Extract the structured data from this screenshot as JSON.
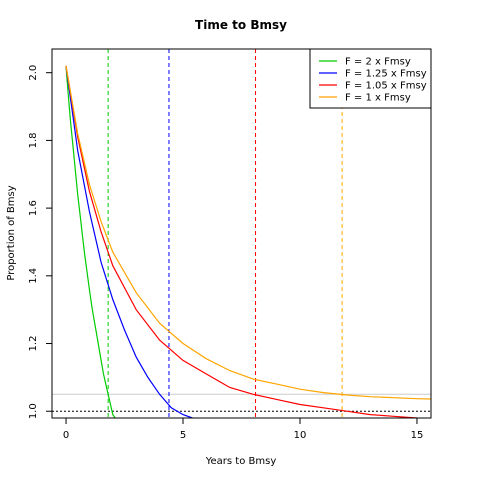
{
  "chart_data": {
    "type": "line",
    "title": "Time to Bmsy",
    "xlabel": "Years to Bmsy",
    "ylabel": "Proportion of Bmsy",
    "xlim": [
      -0.6,
      15.6
    ],
    "ylim": [
      0.98,
      2.07
    ],
    "xticks": [
      0,
      5,
      10,
      15
    ],
    "yticks": [
      1.0,
      1.2,
      1.4,
      1.6,
      1.8,
      2.0
    ],
    "xtick_labels": [
      "0",
      "5",
      "10",
      "15"
    ],
    "ytick_labels": [
      "1.0",
      "1.2",
      "1.4",
      "1.6",
      "1.8",
      "2.0"
    ],
    "legend_position": "top-right",
    "series": [
      {
        "name": "F = 2 x Fmsy",
        "color": "#00cc00",
        "x": [
          0,
          0.1,
          0.2,
          0.3,
          0.4,
          0.5,
          0.6,
          0.7,
          0.8,
          0.9,
          1.0,
          1.1,
          1.2,
          1.3,
          1.4,
          1.5,
          1.6,
          1.7,
          1.8,
          1.9,
          2.0,
          2.1
        ],
        "y": [
          2.02,
          1.93,
          1.85,
          1.78,
          1.71,
          1.64,
          1.58,
          1.52,
          1.46,
          1.41,
          1.36,
          1.31,
          1.27,
          1.23,
          1.19,
          1.15,
          1.11,
          1.08,
          1.05,
          1.02,
          0.99,
          0.98
        ],
        "crossing_x": 1.8
      },
      {
        "name": "F = 1.25 x Fmsy",
        "color": "#0000ff",
        "x": [
          0,
          0.5,
          1.0,
          1.5,
          2.0,
          2.5,
          3.0,
          3.5,
          4.0,
          4.5,
          5.0,
          5.4
        ],
        "y": [
          2.02,
          1.77,
          1.59,
          1.44,
          1.33,
          1.24,
          1.16,
          1.1,
          1.05,
          1.01,
          0.99,
          0.98
        ],
        "crossing_x": 4.4
      },
      {
        "name": "F = 1.05 x Fmsy",
        "color": "#ff0000",
        "x": [
          0,
          0.5,
          1.0,
          1.5,
          2.0,
          3.0,
          4.0,
          5.0,
          6.0,
          7.0,
          8.0,
          9.0,
          10.0,
          11.0,
          12.0,
          13.0,
          14.0,
          15.0
        ],
        "y": [
          2.02,
          1.81,
          1.65,
          1.53,
          1.43,
          1.3,
          1.21,
          1.15,
          1.11,
          1.07,
          1.05,
          1.035,
          1.02,
          1.01,
          1.0,
          0.99,
          0.985,
          0.98
        ],
        "crossing_x": 8.1
      },
      {
        "name": "F = 1 x Fmsy",
        "color": "#ffa500",
        "x": [
          0,
          0.5,
          1.0,
          1.5,
          2.0,
          3.0,
          4.0,
          5.0,
          6.0,
          7.0,
          8.0,
          9.0,
          10.0,
          11.0,
          12.0,
          13.0,
          14.0,
          15.0,
          15.6
        ],
        "y": [
          2.02,
          1.82,
          1.67,
          1.56,
          1.47,
          1.35,
          1.26,
          1.2,
          1.155,
          1.12,
          1.095,
          1.08,
          1.065,
          1.055,
          1.048,
          1.043,
          1.04,
          1.037,
          1.036
        ],
        "crossing_x": 11.8
      }
    ],
    "reference_lines": {
      "target_y": 1.0,
      "gray_y": 1.05
    }
  }
}
